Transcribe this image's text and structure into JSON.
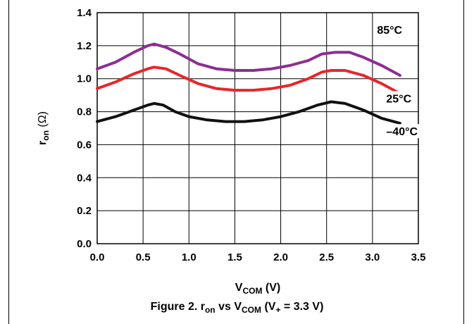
{
  "chart_data": {
    "type": "line",
    "caption": {
      "prefix": "Figure 2. r",
      "sub1": "on",
      "mid": " vs V",
      "sub2": "COM",
      "tail": " (V",
      "sub3": "+",
      "end": " = 3.3 V)"
    },
    "xlabel": {
      "main": "V",
      "sub": "COM",
      "suffix": " (V)"
    },
    "ylabel": {
      "main": "r",
      "sub": "on",
      "suffix": " (Ω)"
    },
    "xlim": [
      0,
      3.5
    ],
    "ylim": [
      0,
      1.4
    ],
    "x_ticks": [
      "0.0",
      "0.5",
      "1.0",
      "1.5",
      "2.0",
      "2.5",
      "3.0",
      "3.5"
    ],
    "y_ticks": [
      "0.0",
      "0.2",
      "0.4",
      "0.6",
      "0.8",
      "1.0",
      "1.2",
      "1.4"
    ],
    "grid": true,
    "series": [
      {
        "name": "85°C",
        "color": "#8e2d93",
        "points": [
          [
            0,
            1.06
          ],
          [
            0.2,
            1.1
          ],
          [
            0.4,
            1.16
          ],
          [
            0.55,
            1.2
          ],
          [
            0.62,
            1.21
          ],
          [
            0.75,
            1.19
          ],
          [
            0.9,
            1.15
          ],
          [
            1.1,
            1.09
          ],
          [
            1.3,
            1.06
          ],
          [
            1.5,
            1.05
          ],
          [
            1.7,
            1.05
          ],
          [
            1.9,
            1.06
          ],
          [
            2.1,
            1.08
          ],
          [
            2.3,
            1.11
          ],
          [
            2.45,
            1.15
          ],
          [
            2.6,
            1.16
          ],
          [
            2.75,
            1.16
          ],
          [
            2.9,
            1.13
          ],
          [
            3.1,
            1.08
          ],
          [
            3.3,
            1.02
          ]
        ]
      },
      {
        "name": "25°C",
        "color": "#e8252a",
        "points": [
          [
            0,
            0.94
          ],
          [
            0.2,
            0.98
          ],
          [
            0.4,
            1.03
          ],
          [
            0.55,
            1.06
          ],
          [
            0.62,
            1.07
          ],
          [
            0.75,
            1.06
          ],
          [
            0.9,
            1.02
          ],
          [
            1.1,
            0.97
          ],
          [
            1.3,
            0.94
          ],
          [
            1.5,
            0.93
          ],
          [
            1.7,
            0.93
          ],
          [
            1.9,
            0.94
          ],
          [
            2.1,
            0.96
          ],
          [
            2.3,
            1.0
          ],
          [
            2.45,
            1.04
          ],
          [
            2.55,
            1.05
          ],
          [
            2.7,
            1.05
          ],
          [
            2.9,
            1.02
          ],
          [
            3.1,
            0.97
          ],
          [
            3.3,
            0.91
          ]
        ]
      },
      {
        "name": "–40°C",
        "color": "#111111",
        "points": [
          [
            0,
            0.74
          ],
          [
            0.2,
            0.77
          ],
          [
            0.4,
            0.81
          ],
          [
            0.55,
            0.84
          ],
          [
            0.62,
            0.85
          ],
          [
            0.72,
            0.84
          ],
          [
            0.85,
            0.8
          ],
          [
            1.0,
            0.77
          ],
          [
            1.2,
            0.75
          ],
          [
            1.4,
            0.74
          ],
          [
            1.6,
            0.74
          ],
          [
            1.8,
            0.75
          ],
          [
            2.0,
            0.77
          ],
          [
            2.2,
            0.8
          ],
          [
            2.4,
            0.84
          ],
          [
            2.55,
            0.86
          ],
          [
            2.7,
            0.85
          ],
          [
            2.9,
            0.81
          ],
          [
            3.1,
            0.76
          ],
          [
            3.3,
            0.73
          ]
        ]
      }
    ],
    "labels": [
      {
        "text": "85°C",
        "series": 0,
        "x": 3.05,
        "y": 1.28
      },
      {
        "text": "25°C",
        "series": 1,
        "x": 3.15,
        "y": 0.865
      },
      {
        "text": "–40°C",
        "series": 2,
        "x": 3.15,
        "y": 0.665
      }
    ]
  }
}
